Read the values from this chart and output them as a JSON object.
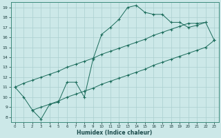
{
  "xlabel": "Humidex (Indice chaleur)",
  "bg_color": "#cce8e8",
  "line_color": "#1a6b5a",
  "grid_color": "#aacfcf",
  "xlim": [
    -0.5,
    23.5
  ],
  "ylim": [
    7.5,
    19.5
  ],
  "xticks": [
    0,
    1,
    2,
    3,
    4,
    5,
    6,
    7,
    8,
    9,
    10,
    11,
    12,
    13,
    14,
    15,
    16,
    17,
    18,
    19,
    20,
    21,
    22,
    23
  ],
  "yticks": [
    8,
    9,
    10,
    11,
    12,
    13,
    14,
    15,
    16,
    17,
    18,
    19
  ],
  "line1_x": [
    0,
    1,
    2,
    3,
    4,
    5,
    6,
    7,
    8,
    9,
    10,
    11,
    12,
    13,
    14,
    15,
    16,
    17,
    18,
    19,
    20,
    21,
    22
  ],
  "line1_y": [
    11,
    10,
    8.7,
    7.8,
    9.3,
    9.5,
    11.5,
    11.5,
    10.0,
    13.8,
    16.3,
    17.0,
    17.8,
    19.0,
    19.2,
    18.5,
    18.3,
    18.3,
    17.5,
    17.5,
    17.0,
    17.2,
    17.5
  ],
  "line2_x": [
    0,
    1,
    2,
    3,
    4,
    5,
    6,
    7,
    8,
    9,
    10,
    11,
    12,
    13,
    14,
    15,
    16,
    17,
    18,
    19,
    20,
    21,
    22,
    23
  ],
  "line2_y": [
    11.0,
    11.4,
    11.7,
    12.0,
    12.3,
    12.6,
    13.0,
    13.3,
    13.6,
    13.9,
    14.3,
    14.6,
    14.9,
    15.2,
    15.5,
    15.8,
    16.2,
    16.5,
    16.8,
    17.1,
    17.4,
    17.4,
    17.5,
    15.7
  ],
  "line3_x": [
    2,
    3,
    4,
    5,
    6,
    7,
    8,
    9,
    10,
    11,
    12,
    13,
    14,
    15,
    16,
    17,
    18,
    19,
    20,
    21,
    22,
    23
  ],
  "line3_y": [
    8.7,
    9.0,
    9.3,
    9.6,
    10.0,
    10.3,
    10.6,
    10.9,
    11.3,
    11.6,
    11.9,
    12.2,
    12.5,
    12.8,
    13.2,
    13.5,
    13.8,
    14.1,
    14.4,
    14.7,
    15.0,
    15.7
  ]
}
